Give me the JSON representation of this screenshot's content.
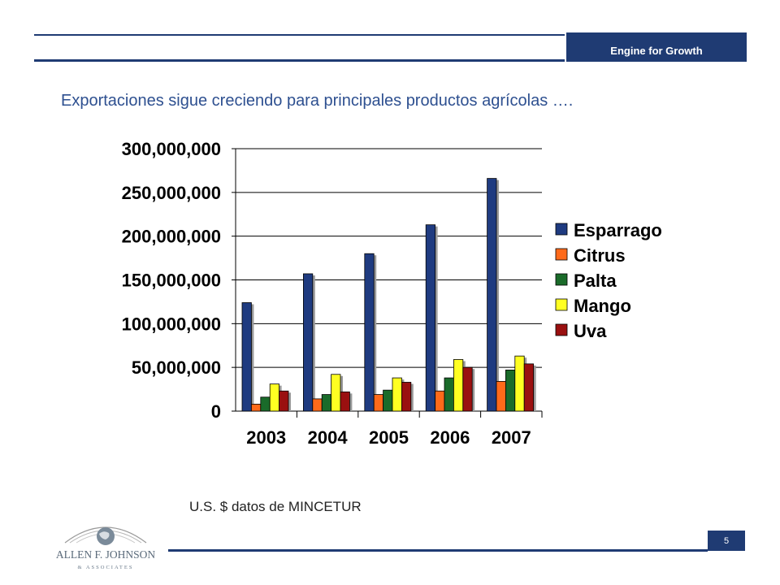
{
  "header": {
    "tag": "Engine for Growth"
  },
  "slide": {
    "title": "Exportaciones sigue creciendo para principales productos agrícolas ….",
    "source_note": "U.S. $  datos de MINCETUR",
    "page_number": "5"
  },
  "logo": {
    "text_main": "ALLEN F. JOHNSON",
    "text_sub": "& ASSOCIATES"
  },
  "chart_data": {
    "type": "bar",
    "categories": [
      "2003",
      "2004",
      "2005",
      "2006",
      "2007"
    ],
    "series": [
      {
        "name": "Esparrago",
        "color": "#1f3b80",
        "values": [
          124000000,
          157000000,
          180000000,
          213000000,
          266000000
        ]
      },
      {
        "name": "Citrus",
        "color": "#ff6a1a",
        "values": [
          8000000,
          14000000,
          19000000,
          23000000,
          34000000
        ]
      },
      {
        "name": "Palta",
        "color": "#1a6b2a",
        "values": [
          16000000,
          19000000,
          24000000,
          38000000,
          47000000
        ]
      },
      {
        "name": "Mango",
        "color": "#ffff22",
        "values": [
          31000000,
          42000000,
          38000000,
          59000000,
          63000000
        ]
      },
      {
        "name": "Uva",
        "color": "#9a1010",
        "values": [
          23000000,
          22000000,
          33000000,
          50000000,
          54000000
        ]
      }
    ],
    "yticks": [
      "0",
      "50,000,000",
      "100,000,000",
      "150,000,000",
      "200,000,000",
      "250,000,000",
      "300,000,000"
    ],
    "ylim": [
      0,
      300000000
    ],
    "grid": true,
    "legend_position": "right"
  }
}
